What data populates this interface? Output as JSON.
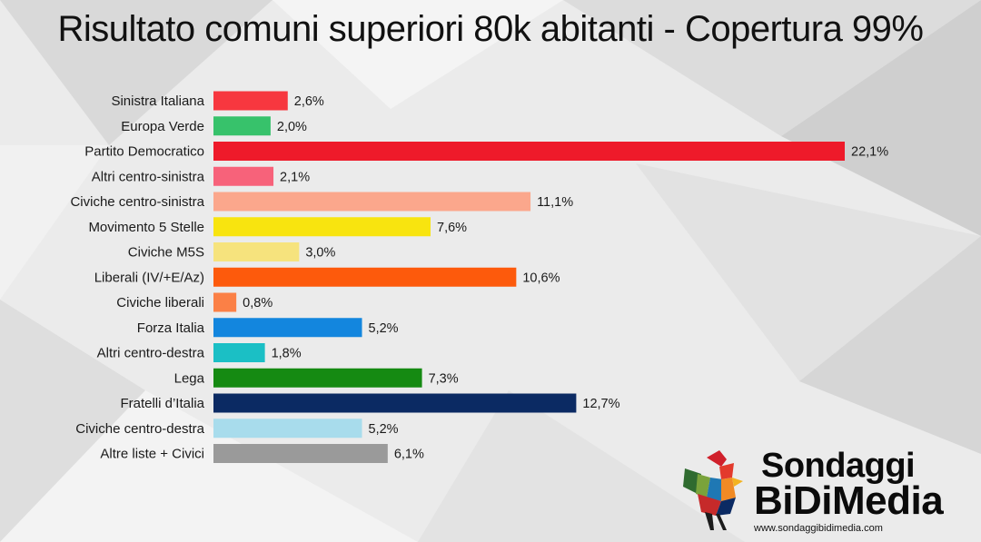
{
  "title": "Risultato comuni superiori 80k abitanti - Copertura 99%",
  "chart_data": {
    "type": "bar",
    "orientation": "horizontal",
    "categories": [
      "Sinistra Italiana",
      "Europa Verde",
      "Partito Democratico",
      "Altri centro-sinistra",
      "Civiche centro-sinistra",
      "Movimento 5 Stelle",
      "Civiche M5S",
      "Liberali (IV/+E/Az)",
      "Civiche liberali",
      "Forza Italia",
      "Altri centro-destra",
      "Lega",
      "Fratelli d’Italia",
      "Civiche centro-destra",
      "Altre liste + Civici"
    ],
    "values": [
      2.6,
      2.0,
      22.1,
      2.1,
      11.1,
      7.6,
      3.0,
      10.6,
      0.8,
      5.2,
      1.8,
      7.3,
      12.7,
      5.2,
      6.1
    ],
    "value_labels": [
      "2,6%",
      "2,0%",
      "22,1%",
      "2,1%",
      "11,1%",
      "7,6%",
      "3,0%",
      "10,6%",
      "0,8%",
      "5,2%",
      "1,8%",
      "7,3%",
      "12,7%",
      "5,2%",
      "6,1%"
    ],
    "colors": [
      "#f7373f",
      "#37c26b",
      "#ee1a2a",
      "#f7627a",
      "#fba78c",
      "#f8e40f",
      "#f6e37d",
      "#fd5a0c",
      "#fb8046",
      "#1386de",
      "#1bbfc5",
      "#158a12",
      "#0b2a63",
      "#a8dcec",
      "#9a9a9a"
    ],
    "xlim": [
      0,
      22.1
    ],
    "grid": false,
    "legend": "none"
  },
  "brand": {
    "line1": "Sondaggi",
    "line2": "BiDiMedia",
    "url": "www.sondaggibidimedia.com"
  }
}
